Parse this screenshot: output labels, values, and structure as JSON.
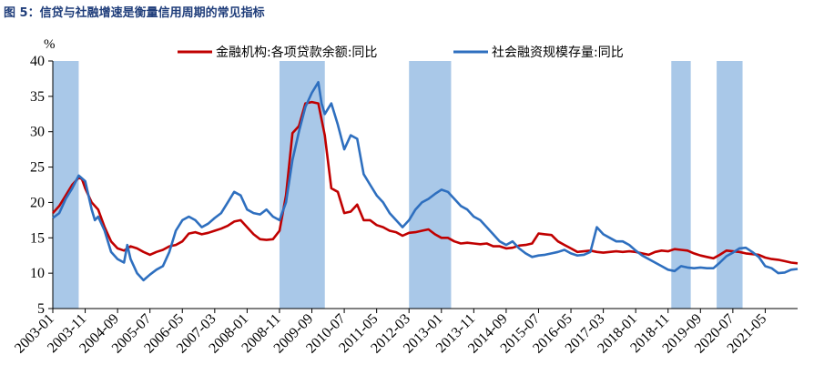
{
  "caption": "图 5：信贷与社融增速是衡量信用周期的常见指标",
  "chart_data": {
    "type": "line",
    "ylabel": "%",
    "ylim": [
      5,
      40
    ],
    "yticks": [
      5,
      10,
      15,
      20,
      25,
      30,
      35,
      40
    ],
    "xlim": [
      "2003-01",
      "2022-03"
    ],
    "xticks": [
      "2003-01",
      "2003-11",
      "2004-09",
      "2005-07",
      "2006-05",
      "2007-03",
      "2008-01",
      "2008-11",
      "2009-09",
      "2010-07",
      "2011-05",
      "2012-03",
      "2013-01",
      "2013-11",
      "2014-09",
      "2015-07",
      "2016-05",
      "2017-03",
      "2018-01",
      "2018-11",
      "2019-09",
      "2020-07",
      "2021-05"
    ],
    "shaded_periods": [
      [
        "2003-01",
        "2003-09"
      ],
      [
        "2008-11",
        "2010-01"
      ],
      [
        "2012-03",
        "2013-04"
      ],
      [
        "2018-12",
        "2019-06"
      ],
      [
        "2020-02",
        "2020-10"
      ]
    ],
    "shade_color": "#a9c8e8",
    "legend_position": "top",
    "series": [
      {
        "name": "金融机构:各项贷款余额:同比",
        "color": "#c00000",
        "points": [
          [
            "2003-01",
            18.5
          ],
          [
            "2003-03",
            19.5
          ],
          [
            "2003-05",
            21.0
          ],
          [
            "2003-07",
            22.5
          ],
          [
            "2003-09",
            23.5
          ],
          [
            "2003-10",
            23.3
          ],
          [
            "2003-11",
            22.0
          ],
          [
            "2004-01",
            20.0
          ],
          [
            "2004-03",
            19.0
          ],
          [
            "2004-05",
            16.5
          ],
          [
            "2004-07",
            14.5
          ],
          [
            "2004-09",
            13.5
          ],
          [
            "2004-11",
            13.2
          ],
          [
            "2005-01",
            13.8
          ],
          [
            "2005-03",
            13.5
          ],
          [
            "2005-05",
            13.0
          ],
          [
            "2005-07",
            12.6
          ],
          [
            "2005-09",
            13.0
          ],
          [
            "2005-11",
            13.3
          ],
          [
            "2006-01",
            13.8
          ],
          [
            "2006-03",
            14.0
          ],
          [
            "2006-05",
            14.5
          ],
          [
            "2006-07",
            15.6
          ],
          [
            "2006-09",
            15.8
          ],
          [
            "2006-11",
            15.5
          ],
          [
            "2007-01",
            15.7
          ],
          [
            "2007-03",
            16.0
          ],
          [
            "2007-05",
            16.3
          ],
          [
            "2007-07",
            16.7
          ],
          [
            "2007-09",
            17.3
          ],
          [
            "2007-11",
            17.5
          ],
          [
            "2008-01",
            16.5
          ],
          [
            "2008-03",
            15.5
          ],
          [
            "2008-05",
            14.8
          ],
          [
            "2008-07",
            14.7
          ],
          [
            "2008-09",
            14.8
          ],
          [
            "2008-11",
            16.0
          ],
          [
            "2009-01",
            21.0
          ],
          [
            "2009-03",
            29.8
          ],
          [
            "2009-05",
            30.8
          ],
          [
            "2009-07",
            34.0
          ],
          [
            "2009-09",
            34.2
          ],
          [
            "2009-11",
            34.0
          ],
          [
            "2010-01",
            29.5
          ],
          [
            "2010-03",
            22.0
          ],
          [
            "2010-05",
            21.5
          ],
          [
            "2010-07",
            18.5
          ],
          [
            "2010-09",
            18.7
          ],
          [
            "2010-11",
            19.7
          ],
          [
            "2011-01",
            17.5
          ],
          [
            "2011-03",
            17.5
          ],
          [
            "2011-05",
            16.8
          ],
          [
            "2011-07",
            16.5
          ],
          [
            "2011-09",
            16.0
          ],
          [
            "2011-11",
            15.8
          ],
          [
            "2012-01",
            15.3
          ],
          [
            "2012-03",
            15.7
          ],
          [
            "2012-05",
            15.8
          ],
          [
            "2012-07",
            16.0
          ],
          [
            "2012-09",
            16.2
          ],
          [
            "2012-11",
            15.5
          ],
          [
            "2013-01",
            15.0
          ],
          [
            "2013-03",
            15.0
          ],
          [
            "2013-05",
            14.5
          ],
          [
            "2013-07",
            14.2
          ],
          [
            "2013-09",
            14.3
          ],
          [
            "2013-11",
            14.2
          ],
          [
            "2014-01",
            14.1
          ],
          [
            "2014-03",
            14.2
          ],
          [
            "2014-05",
            13.8
          ],
          [
            "2014-07",
            13.8
          ],
          [
            "2014-09",
            13.5
          ],
          [
            "2014-11",
            13.6
          ],
          [
            "2015-01",
            13.9
          ],
          [
            "2015-03",
            14.0
          ],
          [
            "2015-05",
            14.2
          ],
          [
            "2015-07",
            15.6
          ],
          [
            "2015-09",
            15.5
          ],
          [
            "2015-11",
            15.4
          ],
          [
            "2016-01",
            14.5
          ],
          [
            "2016-03",
            14.0
          ],
          [
            "2016-05",
            13.5
          ],
          [
            "2016-07",
            13.0
          ],
          [
            "2016-09",
            13.1
          ],
          [
            "2016-11",
            13.2
          ],
          [
            "2017-01",
            13.0
          ],
          [
            "2017-03",
            12.9
          ],
          [
            "2017-05",
            13.0
          ],
          [
            "2017-07",
            13.1
          ],
          [
            "2017-09",
            13.0
          ],
          [
            "2017-11",
            13.1
          ],
          [
            "2018-01",
            13.0
          ],
          [
            "2018-03",
            12.8
          ],
          [
            "2018-05",
            12.6
          ],
          [
            "2018-07",
            13.0
          ],
          [
            "2018-09",
            13.2
          ],
          [
            "2018-11",
            13.1
          ],
          [
            "2019-01",
            13.4
          ],
          [
            "2019-03",
            13.3
          ],
          [
            "2019-05",
            13.2
          ],
          [
            "2019-07",
            12.8
          ],
          [
            "2019-09",
            12.5
          ],
          [
            "2019-11",
            12.3
          ],
          [
            "2020-01",
            12.1
          ],
          [
            "2020-03",
            12.6
          ],
          [
            "2020-05",
            13.2
          ],
          [
            "2020-07",
            13.1
          ],
          [
            "2020-09",
            13.0
          ],
          [
            "2020-11",
            12.8
          ],
          [
            "2021-01",
            12.7
          ],
          [
            "2021-03",
            12.6
          ],
          [
            "2021-05",
            12.2
          ],
          [
            "2021-07",
            12.0
          ],
          [
            "2021-09",
            11.9
          ],
          [
            "2021-11",
            11.7
          ],
          [
            "2022-01",
            11.5
          ],
          [
            "2022-03",
            11.4
          ]
        ]
      },
      {
        "name": "社会融资规模存量:同比",
        "color": "#2e6fbf",
        "points": [
          [
            "2003-01",
            17.8
          ],
          [
            "2003-03",
            18.5
          ],
          [
            "2003-05",
            20.5
          ],
          [
            "2003-07",
            22.0
          ],
          [
            "2003-09",
            23.8
          ],
          [
            "2003-11",
            23.0
          ],
          [
            "2004-01",
            19.0
          ],
          [
            "2004-02",
            17.5
          ],
          [
            "2004-03",
            18.0
          ],
          [
            "2004-05",
            16.0
          ],
          [
            "2004-07",
            13.0
          ],
          [
            "2004-09",
            12.0
          ],
          [
            "2004-11",
            11.5
          ],
          [
            "2004-12",
            14.0
          ],
          [
            "2005-01",
            12.0
          ],
          [
            "2005-03",
            10.0
          ],
          [
            "2005-05",
            9.0
          ],
          [
            "2005-07",
            9.8
          ],
          [
            "2005-09",
            10.5
          ],
          [
            "2005-11",
            11.0
          ],
          [
            "2006-01",
            13.0
          ],
          [
            "2006-03",
            16.0
          ],
          [
            "2006-05",
            17.5
          ],
          [
            "2006-07",
            18.0
          ],
          [
            "2006-09",
            17.5
          ],
          [
            "2006-11",
            16.5
          ],
          [
            "2007-01",
            17.0
          ],
          [
            "2007-03",
            17.8
          ],
          [
            "2007-05",
            18.5
          ],
          [
            "2007-07",
            20.0
          ],
          [
            "2007-09",
            21.5
          ],
          [
            "2007-11",
            21.0
          ],
          [
            "2008-01",
            19.0
          ],
          [
            "2008-03",
            18.5
          ],
          [
            "2008-05",
            18.3
          ],
          [
            "2008-07",
            19.0
          ],
          [
            "2008-09",
            18.0
          ],
          [
            "2008-11",
            17.5
          ],
          [
            "2009-01",
            20.0
          ],
          [
            "2009-03",
            26.0
          ],
          [
            "2009-05",
            30.0
          ],
          [
            "2009-07",
            33.5
          ],
          [
            "2009-09",
            35.5
          ],
          [
            "2009-11",
            37.0
          ],
          [
            "2009-12",
            34.0
          ],
          [
            "2010-01",
            32.5
          ],
          [
            "2010-03",
            34.0
          ],
          [
            "2010-05",
            31.0
          ],
          [
            "2010-07",
            27.5
          ],
          [
            "2010-09",
            29.5
          ],
          [
            "2010-11",
            29.0
          ],
          [
            "2011-01",
            24.0
          ],
          [
            "2011-03",
            22.5
          ],
          [
            "2011-05",
            21.0
          ],
          [
            "2011-07",
            20.0
          ],
          [
            "2011-09",
            18.5
          ],
          [
            "2011-11",
            17.5
          ],
          [
            "2012-01",
            16.5
          ],
          [
            "2012-03",
            17.5
          ],
          [
            "2012-05",
            19.0
          ],
          [
            "2012-07",
            20.0
          ],
          [
            "2012-09",
            20.5
          ],
          [
            "2012-11",
            21.2
          ],
          [
            "2013-01",
            21.8
          ],
          [
            "2013-03",
            21.5
          ],
          [
            "2013-05",
            20.5
          ],
          [
            "2013-07",
            19.5
          ],
          [
            "2013-09",
            19.0
          ],
          [
            "2013-11",
            18.0
          ],
          [
            "2014-01",
            17.5
          ],
          [
            "2014-03",
            16.5
          ],
          [
            "2014-05",
            15.5
          ],
          [
            "2014-07",
            14.5
          ],
          [
            "2014-09",
            14.0
          ],
          [
            "2014-11",
            14.5
          ],
          [
            "2015-01",
            13.5
          ],
          [
            "2015-03",
            12.8
          ],
          [
            "2015-05",
            12.3
          ],
          [
            "2015-07",
            12.5
          ],
          [
            "2015-09",
            12.6
          ],
          [
            "2015-11",
            12.8
          ],
          [
            "2016-01",
            13.0
          ],
          [
            "2016-03",
            13.3
          ],
          [
            "2016-05",
            12.8
          ],
          [
            "2016-07",
            12.5
          ],
          [
            "2016-09",
            12.6
          ],
          [
            "2016-11",
            13.0
          ],
          [
            "2017-01",
            16.5
          ],
          [
            "2017-03",
            15.5
          ],
          [
            "2017-05",
            15.0
          ],
          [
            "2017-07",
            14.5
          ],
          [
            "2017-09",
            14.5
          ],
          [
            "2017-11",
            14.0
          ],
          [
            "2018-01",
            13.2
          ],
          [
            "2018-03",
            12.5
          ],
          [
            "2018-05",
            12.0
          ],
          [
            "2018-07",
            11.5
          ],
          [
            "2018-09",
            11.0
          ],
          [
            "2018-11",
            10.5
          ],
          [
            "2019-01",
            10.3
          ],
          [
            "2019-03",
            11.0
          ],
          [
            "2019-05",
            10.8
          ],
          [
            "2019-07",
            10.7
          ],
          [
            "2019-09",
            10.8
          ],
          [
            "2019-11",
            10.7
          ],
          [
            "2020-01",
            10.7
          ],
          [
            "2020-03",
            11.5
          ],
          [
            "2020-05",
            12.4
          ],
          [
            "2020-07",
            12.9
          ],
          [
            "2020-09",
            13.5
          ],
          [
            "2020-11",
            13.6
          ],
          [
            "2021-01",
            13.0
          ],
          [
            "2021-03",
            12.3
          ],
          [
            "2021-05",
            11.0
          ],
          [
            "2021-07",
            10.7
          ],
          [
            "2021-09",
            10.0
          ],
          [
            "2021-11",
            10.1
          ],
          [
            "2022-01",
            10.5
          ],
          [
            "2022-03",
            10.6
          ]
        ]
      }
    ]
  }
}
